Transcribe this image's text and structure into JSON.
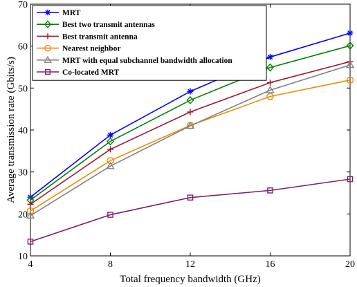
{
  "chart_data": {
    "type": "line",
    "xlabel": "Total frequency bandwidth (GHz)",
    "ylabel": "Average transmission rate (Gbits/s)",
    "x": [
      4,
      8,
      12,
      16,
      20
    ],
    "xlim": [
      4,
      20
    ],
    "ylim": [
      10,
      70
    ],
    "xticks": [
      4,
      8,
      12,
      16,
      20
    ],
    "yticks": [
      10,
      20,
      30,
      40,
      50,
      60,
      70
    ],
    "grid": false,
    "legend_position": "top-left",
    "series": [
      {
        "name": "MRT",
        "values": [
          24.0,
          38.8,
          49.2,
          57.4,
          63.1
        ],
        "color": "#0000ff",
        "marker": "star"
      },
      {
        "name": "Best two transmit antennas",
        "values": [
          23.3,
          37.3,
          47.1,
          54.9,
          60.1
        ],
        "color": "#008000",
        "marker": "diamond"
      },
      {
        "name": "Best transmit antenna",
        "values": [
          22.3,
          35.4,
          44.3,
          51.3,
          56.3
        ],
        "color": "#a2142f",
        "marker": "plus"
      },
      {
        "name": "Nearest neighbor",
        "values": [
          20.7,
          32.7,
          41.1,
          48.0,
          51.9
        ],
        "color": "#ed8b00",
        "marker": "circle"
      },
      {
        "name": "MRT with equal subchannel bandwidth allocation",
        "values": [
          19.6,
          31.4,
          41.0,
          49.5,
          55.5
        ],
        "color": "#808080",
        "marker": "triangle"
      },
      {
        "name": "Co-located MRT",
        "values": [
          13.4,
          19.8,
          23.9,
          25.6,
          28.3
        ],
        "color": "#7e1e6e",
        "marker": "square"
      }
    ]
  }
}
